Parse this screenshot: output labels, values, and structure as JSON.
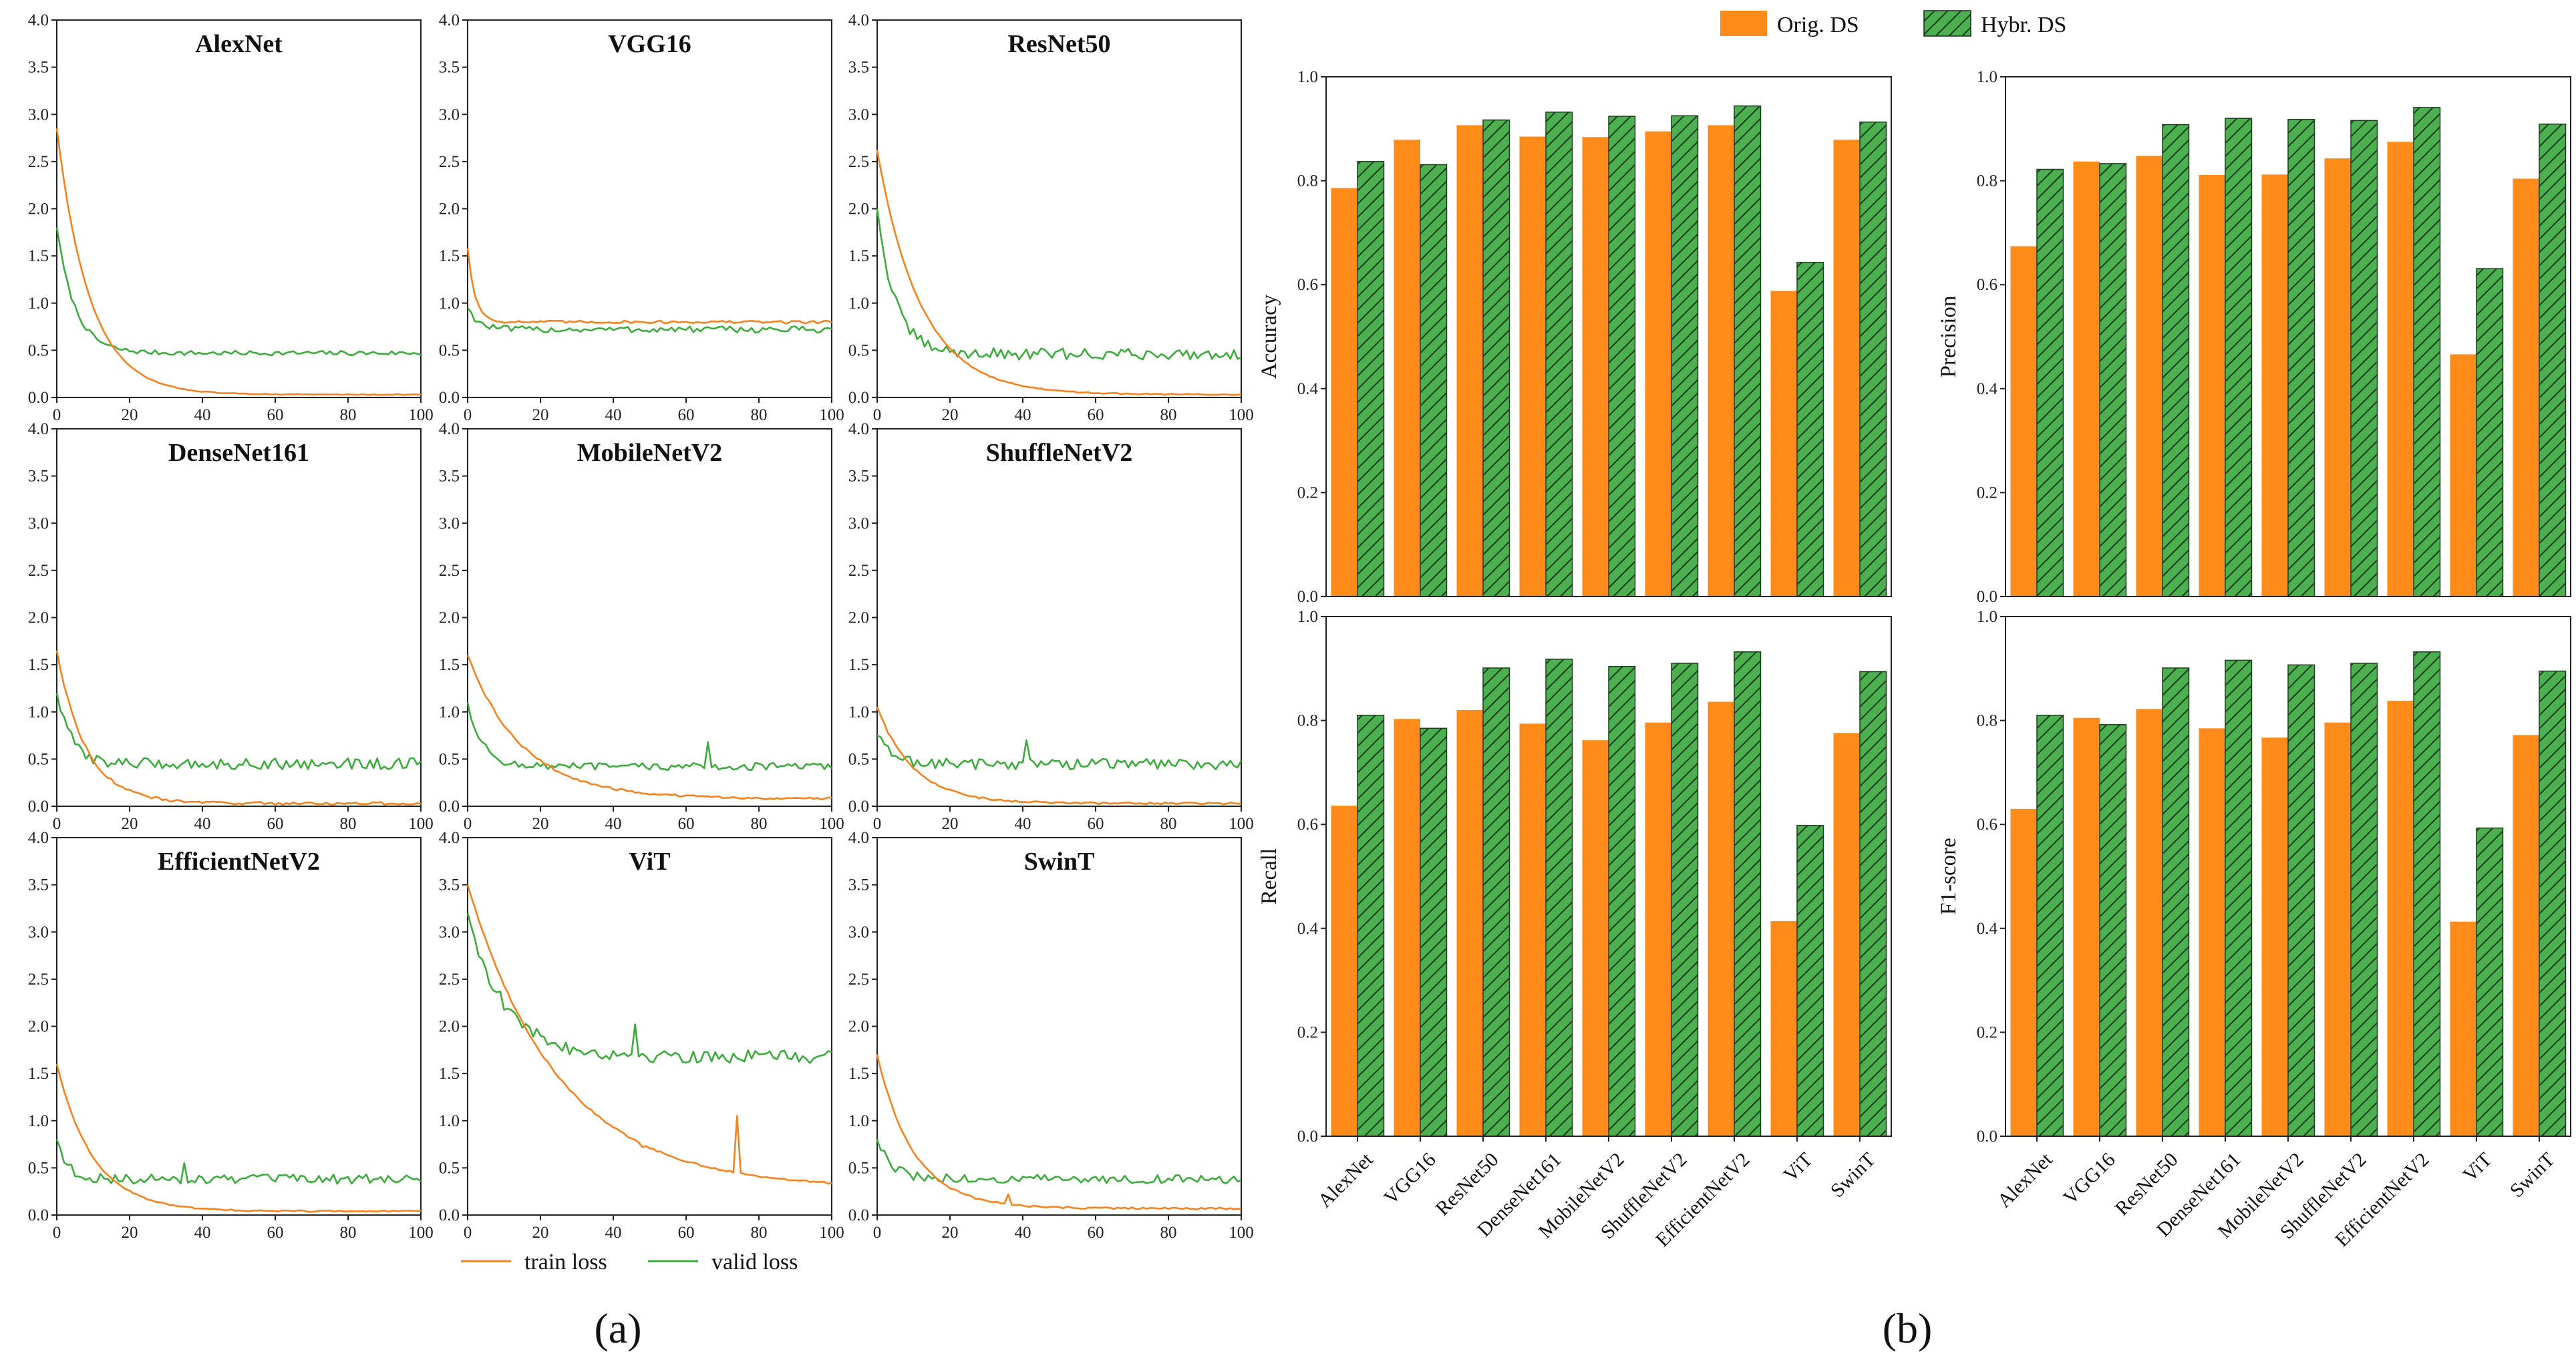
{
  "panel_labels": {
    "a": "(a)",
    "b": "(b)"
  },
  "colors": {
    "orange": "#FF8C1A",
    "green": "#4CAF50",
    "train": "#F5821F",
    "valid": "#3DAA3D"
  },
  "chart_data": [
    {
      "type": "line",
      "group": "loss_curves",
      "legend": [
        "train loss",
        "valid loss"
      ],
      "xlim": [
        0,
        100
      ],
      "ylim": [
        0,
        4.0
      ],
      "xticks": [
        "0",
        "20",
        "40",
        "60",
        "80",
        "100"
      ],
      "yticks": [
        "0.0",
        "0.5",
        "1.0",
        "1.5",
        "2.0",
        "2.5",
        "3.0",
        "3.5",
        "4.0"
      ],
      "panels": [
        {
          "title": "AlexNet",
          "train": {
            "start": 2.85,
            "end": 0.03,
            "tau": 9,
            "noise": 0.004,
            "spikes": []
          },
          "valid": {
            "start": 1.8,
            "end": 0.47,
            "tau": 5,
            "noise": 0.025,
            "spikes": []
          }
        },
        {
          "title": "VGG16",
          "train": {
            "start": 1.58,
            "end": 0.8,
            "tau": 2,
            "noise": 0.015,
            "spikes": []
          },
          "valid": {
            "start": 0.95,
            "end": 0.72,
            "tau": 3,
            "noise": 0.035,
            "spikes": []
          }
        },
        {
          "title": "ResNet50",
          "train": {
            "start": 2.62,
            "end": 0.03,
            "tau": 12,
            "noise": 0.006,
            "spikes": []
          },
          "valid": {
            "start": 2.0,
            "end": 0.46,
            "tau": 5,
            "noise": 0.06,
            "spikes": []
          }
        },
        {
          "title": "DenseNet161",
          "train": {
            "start": 1.65,
            "end": 0.03,
            "tau": 8,
            "noise": 0.015,
            "spikes": []
          },
          "valid": {
            "start": 1.2,
            "end": 0.45,
            "tau": 4,
            "noise": 0.06,
            "spikes": []
          }
        },
        {
          "title": "MobileNetV2",
          "train": {
            "start": 1.6,
            "end": 0.08,
            "tau": 15,
            "noise": 0.012,
            "spikes": []
          },
          "valid": {
            "start": 1.1,
            "end": 0.42,
            "tau": 4,
            "noise": 0.04,
            "spikes": [
              [
                66,
                0.68
              ]
            ]
          }
        },
        {
          "title": "ShuffleNetV2",
          "train": {
            "start": 1.05,
            "end": 0.03,
            "tau": 10,
            "noise": 0.01,
            "spikes": []
          },
          "valid": {
            "start": 0.75,
            "end": 0.45,
            "tau": 4,
            "noise": 0.06,
            "spikes": [
              [
                41,
                0.7
              ]
            ]
          }
        },
        {
          "title": "EfficientNetV2",
          "train": {
            "start": 1.6,
            "end": 0.04,
            "tau": 10,
            "noise": 0.008,
            "spikes": []
          },
          "valid": {
            "start": 0.8,
            "end": 0.38,
            "tau": 3,
            "noise": 0.05,
            "spikes": [
              [
                35,
                0.55
              ]
            ]
          }
        },
        {
          "title": "ViT",
          "train": {
            "start": 3.5,
            "end": 0.28,
            "tau": 25,
            "noise": 0.01,
            "spikes": [
              [
                48,
                0.72
              ],
              [
                74,
                1.05
              ]
            ]
          },
          "valid": {
            "start": 3.2,
            "end": 1.68,
            "tau": 10,
            "noise": 0.07,
            "spikes": [
              [
                46,
                2.02
              ]
            ]
          }
        },
        {
          "title": "SwinT",
          "train": {
            "start": 1.7,
            "end": 0.07,
            "tau": 10,
            "noise": 0.01,
            "spikes": [
              [
                36,
                0.22
              ]
            ]
          },
          "valid": {
            "start": 0.8,
            "end": 0.38,
            "tau": 4,
            "noise": 0.05,
            "spikes": []
          }
        }
      ]
    },
    {
      "type": "bar",
      "group": "metrics",
      "legend": [
        "Orig. DS",
        "Hybr. DS"
      ],
      "categories": [
        "AlexNet",
        "VGG16",
        "ResNet50",
        "DenseNet161",
        "MobileNetV2",
        "ShuffleNetV2",
        "EfficientNetV2",
        "ViT",
        "SwinT"
      ],
      "ylim": [
        0,
        1.0
      ],
      "yticks": [
        "0.0",
        "0.2",
        "0.4",
        "0.6",
        "0.8",
        "1.0"
      ],
      "panels": [
        {
          "ylabel": "Accuracy",
          "series": [
            {
              "name": "Orig. DS",
              "values": [
                0.786,
                0.879,
                0.907,
                0.885,
                0.884,
                0.895,
                0.907,
                0.588,
                0.879
              ]
            },
            {
              "name": "Hybr. DS",
              "values": [
                0.837,
                0.831,
                0.917,
                0.932,
                0.924,
                0.925,
                0.944,
                0.643,
                0.913
              ]
            }
          ]
        },
        {
          "ylabel": "Precision",
          "series": [
            {
              "name": "Orig. DS",
              "values": [
                0.674,
                0.837,
                0.848,
                0.811,
                0.812,
                0.843,
                0.875,
                0.466,
                0.804
              ]
            },
            {
              "name": "Hybr. DS",
              "values": [
                0.822,
                0.833,
                0.908,
                0.92,
                0.918,
                0.916,
                0.941,
                0.631,
                0.909
              ]
            }
          ]
        },
        {
          "ylabel": "Recall",
          "series": [
            {
              "name": "Orig. DS",
              "values": [
                0.636,
                0.803,
                0.82,
                0.794,
                0.762,
                0.796,
                0.836,
                0.414,
                0.776
              ]
            },
            {
              "name": "Hybr. DS",
              "values": [
                0.81,
                0.785,
                0.901,
                0.918,
                0.904,
                0.91,
                0.932,
                0.598,
                0.894
              ]
            }
          ]
        },
        {
          "ylabel": "F1-score",
          "series": [
            {
              "name": "Orig. DS",
              "values": [
                0.63,
                0.805,
                0.822,
                0.785,
                0.767,
                0.796,
                0.838,
                0.413,
                0.772
              ]
            },
            {
              "name": "Hybr. DS",
              "values": [
                0.81,
                0.792,
                0.901,
                0.916,
                0.907,
                0.91,
                0.932,
                0.593,
                0.895
              ]
            }
          ]
        }
      ]
    }
  ]
}
